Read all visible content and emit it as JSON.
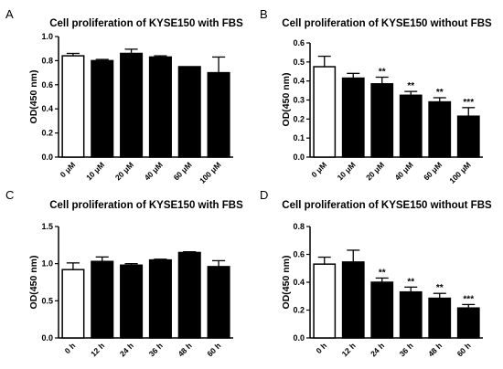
{
  "chart_data": [
    {
      "panel": "A",
      "type": "bar",
      "title": "Cell proliferation of KYSE150 with FBS",
      "ylabel": "OD(450 nm)",
      "ylim": [
        0,
        1.0
      ],
      "yticks": [
        "0.0",
        "0.2",
        "0.4",
        "0.6",
        "0.8",
        "1.0"
      ],
      "categories": [
        "0 μM",
        "10 μM",
        "20 μM",
        "40 μM",
        "60 μM",
        "100 μM"
      ],
      "values": [
        0.84,
        0.8,
        0.86,
        0.83,
        0.75,
        0.7
      ],
      "errors": [
        0.02,
        0.01,
        0.035,
        0.01,
        0.0,
        0.13
      ],
      "significance": [
        "",
        "",
        "",
        "",
        "",
        ""
      ],
      "control_bar": "white",
      "treatment_bar": "black"
    },
    {
      "panel": "B",
      "type": "bar",
      "title": "Cell proliferation of KYSE150 without FBS",
      "ylabel": "OD(450 nm)",
      "ylim": [
        0,
        0.6
      ],
      "yticks": [
        "0.0",
        "0.1",
        "0.2",
        "0.3",
        "0.4",
        "0.5",
        "0.6"
      ],
      "categories": [
        "0 μM",
        "10 μM",
        "20 μM",
        "40 μM",
        "60 μM",
        "100 μM"
      ],
      "values": [
        0.475,
        0.415,
        0.385,
        0.325,
        0.29,
        0.215
      ],
      "errors": [
        0.055,
        0.025,
        0.035,
        0.02,
        0.022,
        0.045
      ],
      "significance": [
        "",
        "",
        "**",
        "**",
        "**",
        "***"
      ],
      "control_bar": "white",
      "treatment_bar": "black"
    },
    {
      "panel": "C",
      "type": "bar",
      "title": "Cell proliferation of KYSE150 with FBS",
      "ylabel": "OD(450 nm)",
      "ylim": [
        0,
        1.5
      ],
      "yticks": [
        "0.0",
        "0.5",
        "1.0",
        "1.5"
      ],
      "categories": [
        "0 h",
        "12 h",
        "24 h",
        "36 h",
        "48 h",
        "60 h"
      ],
      "values": [
        0.92,
        1.03,
        0.98,
        1.05,
        1.15,
        0.96
      ],
      "errors": [
        0.09,
        0.06,
        0.02,
        0.01,
        0.01,
        0.08
      ],
      "significance": [
        "",
        "",
        "",
        "",
        "",
        ""
      ],
      "control_bar": "white",
      "treatment_bar": "black"
    },
    {
      "panel": "D",
      "type": "bar",
      "title": "Cell proliferation of KYSE150 without FBS",
      "ylabel": "OD(450 nm)",
      "ylim": [
        0,
        0.8
      ],
      "yticks": [
        "0.0",
        "0.2",
        "0.4",
        "0.6",
        "0.8"
      ],
      "categories": [
        "0 h",
        "12 h",
        "24 h",
        "36 h",
        "48 h",
        "60 h"
      ],
      "values": [
        0.53,
        0.545,
        0.4,
        0.33,
        0.285,
        0.215
      ],
      "errors": [
        0.05,
        0.085,
        0.03,
        0.035,
        0.035,
        0.025
      ],
      "significance": [
        "",
        "",
        "**",
        "**",
        "**",
        "***"
      ],
      "control_bar": "white",
      "treatment_bar": "black"
    }
  ]
}
